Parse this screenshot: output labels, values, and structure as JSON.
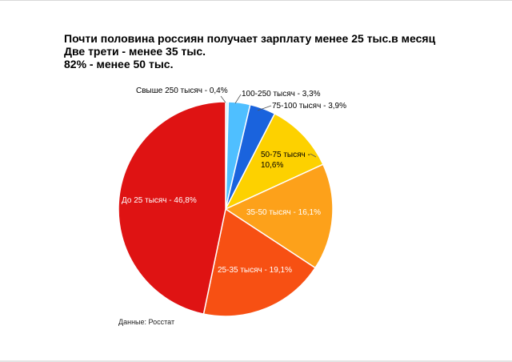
{
  "chart_data": {
    "type": "pie",
    "title_lines": [
      "Почти половина россиян получает зарплату менее 25 тыс.в месяц",
      "Две трети - менее 35 тыс.",
      "82% - менее 50 тыс."
    ],
    "source": "Данные: Росстат",
    "slices": [
      {
        "label": "Свыше 250 тысяч - 0,4%",
        "value": 0.4,
        "color": "#cfeefc"
      },
      {
        "label": "100-250 тысяч - 3,3%",
        "value": 3.3,
        "color": "#4fbfff"
      },
      {
        "label": "75-100 тысяч - 3,9%",
        "value": 3.9,
        "color": "#1a63dd"
      },
      {
        "label": "50-75 тысяч - 10,6%",
        "value": 10.6,
        "color": "#fdd100"
      },
      {
        "label": "35-50 тысяч - 16,1%",
        "value": 16.1,
        "color": "#fda11a"
      },
      {
        "label": "25-35 тысяч - 19,1%",
        "value": 19.1,
        "color": "#f75013"
      },
      {
        "label": "До 25 тысяч - 46,8%",
        "value": 46.8,
        "color": "#df1313"
      }
    ]
  }
}
